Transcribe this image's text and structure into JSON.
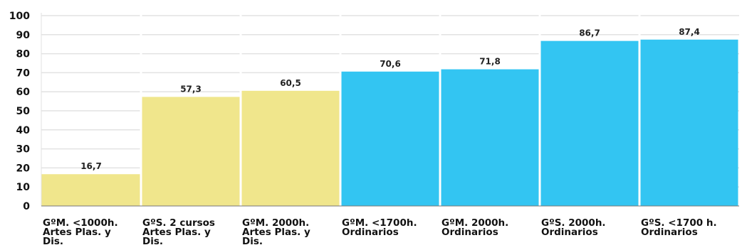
{
  "chart_data": {
    "type": "bar",
    "categories": [
      [
        "GºM. <1000h.",
        "Artes Plas. y",
        "Dis."
      ],
      [
        "GºS. 2 cursos",
        "Artes Plas. y",
        "Dis."
      ],
      [
        "GºM. 2000h.",
        "Artes Plas. y",
        "Dis."
      ],
      [
        "GºM. <1700h.",
        "Ordinarios"
      ],
      [
        "GºM. 2000h.",
        "Ordinarios"
      ],
      [
        "GºS. 2000h.",
        "Ordinarios"
      ],
      [
        "GºS. <1700 h.",
        "Ordinarios"
      ]
    ],
    "values": [
      16.7,
      57.3,
      60.5,
      70.6,
      71.8,
      86.7,
      87.4
    ],
    "value_labels": [
      "16,7",
      "57,3",
      "60,5",
      "70,6",
      "71,8",
      "86,7",
      "87,4"
    ],
    "bar_colors": [
      "#f0e68c",
      "#f0e68c",
      "#f0e68c",
      "#33c5f2",
      "#33c5f2",
      "#33c5f2",
      "#33c5f2"
    ],
    "ylim": [
      0,
      100
    ],
    "yticks": [
      "0",
      "10",
      "20",
      "30",
      "40",
      "50",
      "60",
      "70",
      "80",
      "90",
      "100"
    ],
    "grid": true,
    "grid_color": "#e2e2e2",
    "plot_background": "#ffffff",
    "title": "",
    "xlabel": "",
    "ylabel": ""
  }
}
